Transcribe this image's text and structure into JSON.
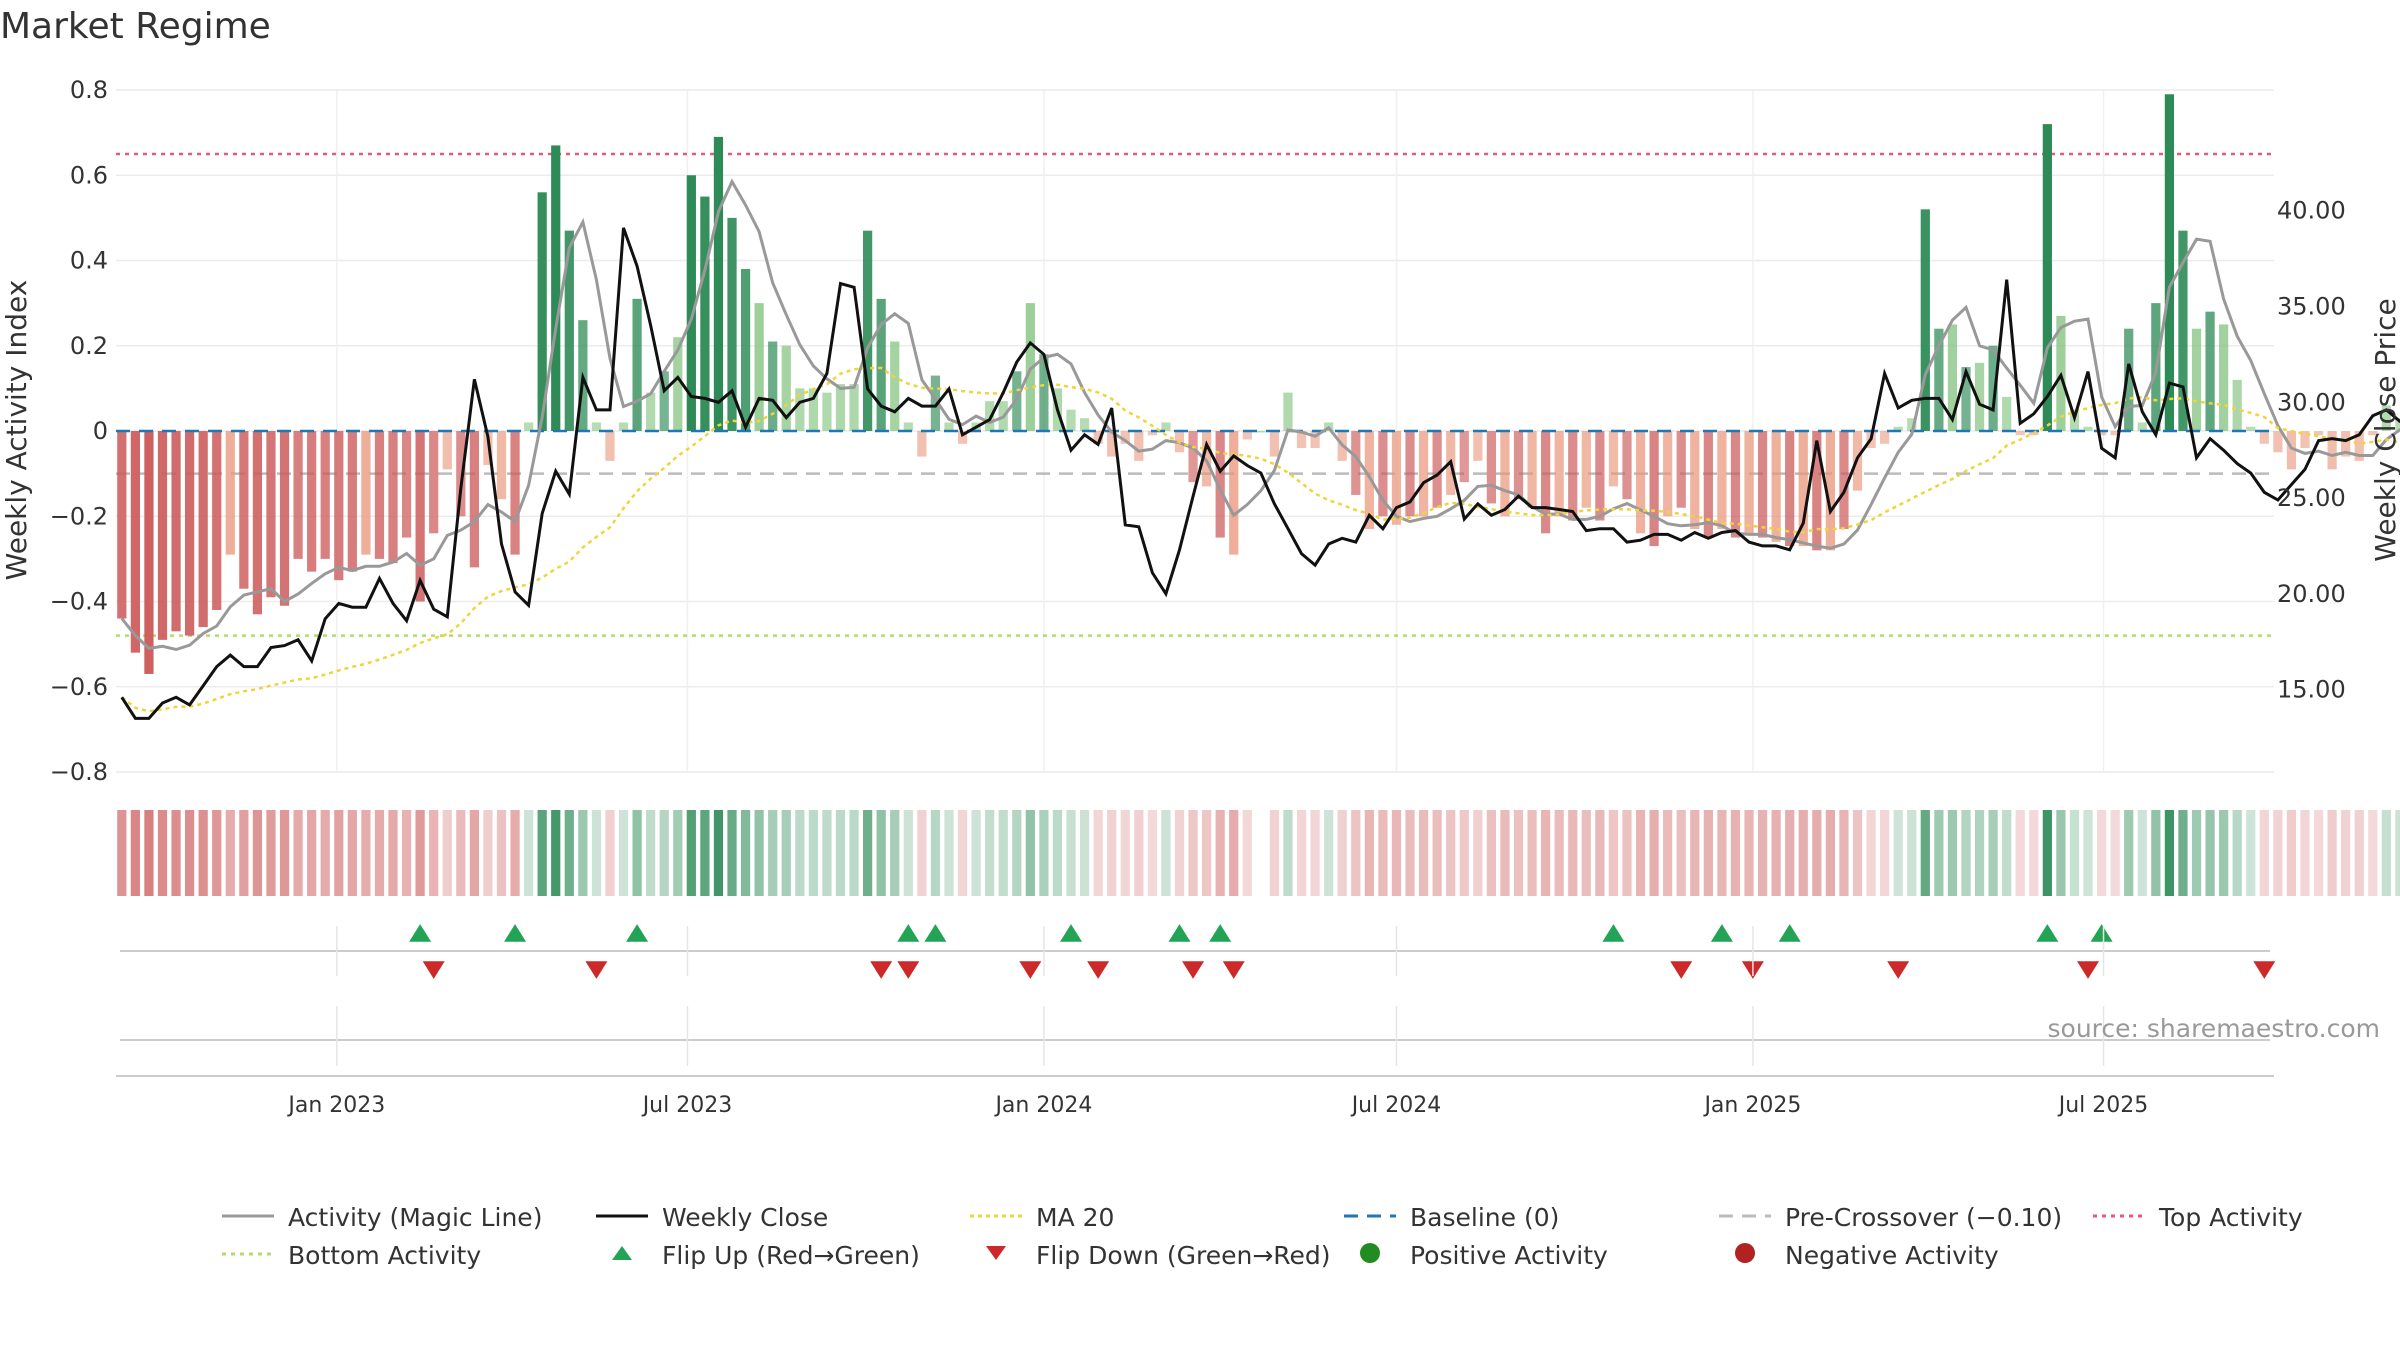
{
  "chart_data": {
    "type": "bar",
    "title": "Market Regime",
    "ylabel": "Weekly Activity Index",
    "y2label": "Weekly Close Price",
    "ylim": [
      -0.8,
      0.8
    ],
    "yticks": [
      -0.8,
      -0.6,
      -0.4,
      -0.2,
      0,
      0.2,
      0.4,
      0.6,
      0.8
    ],
    "yticklabels": [
      "−0.8",
      "−0.6",
      "−0.4",
      "−0.2",
      "0",
      "0.2",
      "0.4",
      "0.6",
      "0.8"
    ],
    "y2lim": [
      10.7,
      46.3
    ],
    "y2ticks": [
      15,
      20,
      25,
      30,
      35,
      40
    ],
    "y2ticklabels": [
      "15.00",
      "20.00",
      "25.00",
      "30.00",
      "35.00",
      "40.00"
    ],
    "x_start": "2022-09-12",
    "x_step_days": 7,
    "xlim": [
      "2022-09-09",
      "2025-09-27"
    ],
    "xticks": [
      "2023-01-01",
      "2023-07-01",
      "2024-01-01",
      "2024-07-01",
      "2025-01-01",
      "2025-07-01"
    ],
    "xticklabels": [
      "Jan 2023",
      "Jul 2023",
      "Jan 2024",
      "Jul 2024",
      "Jan 2025",
      "Jul 2025"
    ],
    "grid": true,
    "legend_position": "bottom",
    "reference_lines": {
      "top_activity": 0.65,
      "bottom_activity": -0.48,
      "pre_crossover": -0.1,
      "baseline": 0
    },
    "activity": [
      -0.44,
      -0.52,
      -0.57,
      -0.49,
      -0.47,
      -0.48,
      -0.46,
      -0.42,
      -0.29,
      -0.37,
      -0.43,
      -0.39,
      -0.41,
      -0.3,
      -0.33,
      -0.3,
      -0.35,
      -0.33,
      -0.29,
      -0.3,
      -0.31,
      -0.25,
      -0.4,
      -0.24,
      -0.09,
      -0.2,
      -0.32,
      -0.08,
      -0.16,
      -0.29,
      0.02,
      0.56,
      0.67,
      0.47,
      0.26,
      0.02,
      -0.07,
      0.02,
      0.31,
      0.09,
      0.14,
      0.22,
      0.6,
      0.55,
      0.69,
      0.5,
      0.38,
      0.3,
      0.21,
      0.2,
      0.1,
      0.1,
      0.09,
      0.11,
      0.11,
      0.47,
      0.31,
      0.21,
      0.02,
      -0.06,
      0.13,
      0.02,
      -0.03,
      0.02,
      0.07,
      0.07,
      0.14,
      0.3,
      0.18,
      0.1,
      0.05,
      0.03,
      -0.03,
      -0.06,
      -0.03,
      -0.07,
      -0.01,
      0.02,
      -0.05,
      -0.12,
      -0.13,
      -0.25,
      -0.29,
      -0.02,
      0.0,
      -0.06,
      0.09,
      -0.04,
      -0.04,
      0.02,
      -0.07,
      -0.15,
      -0.23,
      -0.2,
      -0.22,
      -0.2,
      -0.2,
      -0.18,
      -0.15,
      -0.12,
      -0.07,
      -0.17,
      -0.2,
      -0.16,
      -0.18,
      -0.24,
      -0.2,
      -0.21,
      -0.18,
      -0.21,
      -0.13,
      -0.16,
      -0.24,
      -0.27,
      -0.2,
      -0.18,
      -0.23,
      -0.25,
      -0.23,
      -0.25,
      -0.24,
      -0.25,
      -0.26,
      -0.27,
      -0.27,
      -0.28,
      -0.28,
      -0.23,
      -0.14,
      -0.04,
      -0.03,
      0.01,
      0.03,
      0.52,
      0.24,
      0.25,
      0.15,
      0.16,
      0.2,
      0.08,
      -0.01,
      -0.01,
      0.72,
      0.27,
      0.05,
      0.01,
      -0.01,
      -0.01,
      0.24,
      0.02,
      0.3,
      0.79,
      0.47,
      0.24,
      0.28,
      0.25,
      0.12,
      0.01,
      -0.03,
      -0.05,
      -0.09,
      -0.04,
      -0.01,
      -0.09,
      -0.06,
      -0.07,
      -0.01,
      0.06,
      0.03,
      0.04,
      0.04,
      0.1,
      0.01,
      0.21,
      0.2,
      0.21,
      0.16,
      0.23,
      0.18,
      0.26,
      0.17,
      0.21,
      0.1,
      0.41,
      0.11,
      -0.01,
      -0.01
    ],
    "weekly_close": [
      14.6,
      13.5,
      13.5,
      14.3,
      14.6,
      14.2,
      15.2,
      16.2,
      16.8,
      16.2,
      16.2,
      17.2,
      17.3,
      17.6,
      16.5,
      18.7,
      19.5,
      19.3,
      19.3,
      20.8,
      19.5,
      18.6,
      20.7,
      19.2,
      18.8,
      25.5,
      31.2,
      28.2,
      22.6,
      20.1,
      19.4,
      24.2,
      26.4,
      25.2,
      31.3,
      29.6,
      29.6,
      39.1,
      37.1,
      34.0,
      30.6,
      31.3,
      30.3,
      30.2,
      30.0,
      30.6,
      28.7,
      30.2,
      30.1,
      29.2,
      30.0,
      30.2,
      31.5,
      36.2,
      36.0,
      30.7,
      29.8,
      29.5,
      30.2,
      29.8,
      29.8,
      30.7,
      28.3,
      28.7,
      29.1,
      30.5,
      32.1,
      33.1,
      32.5,
      29.6,
      27.5,
      28.3,
      27.8,
      29.7,
      23.6,
      23.5,
      21.1,
      20.0,
      22.3,
      25.1,
      27.8,
      26.4,
      27.2,
      26.7,
      26.3,
      24.7,
      23.4,
      22.1,
      21.5,
      22.6,
      22.9,
      22.7,
      24.1,
      23.4,
      24.5,
      24.8,
      25.8,
      26.2,
      26.9,
      23.9,
      24.7,
      24.1,
      24.4,
      25.1,
      24.5,
      24.5,
      24.4,
      24.3,
      23.3,
      23.4,
      23.4,
      22.7,
      22.8,
      23.1,
      23.1,
      22.8,
      23.2,
      22.9,
      23.2,
      23.3,
      22.7,
      22.5,
      22.5,
      22.3,
      23.7,
      28.0,
      24.3,
      25.3,
      27.1,
      28.1,
      31.5,
      29.7,
      30.1,
      30.2,
      30.2,
      29.1,
      31.6,
      29.9,
      29.6,
      36.4,
      28.9,
      29.4,
      30.3,
      31.4,
      29.2,
      31.6,
      27.6,
      27.1,
      32.0,
      29.5,
      28.3,
      31.0,
      30.8,
      27.1,
      28.1,
      27.5,
      26.8,
      26.3,
      25.3,
      24.9,
      25.7,
      26.5,
      28.0,
      28.1,
      28.0,
      28.3,
      29.3,
      29.6,
      29.0,
      28.8,
      28.6,
      29.6,
      32.2,
      31.5,
      32.0,
      32.2,
      33.1,
      32.7,
      33.1,
      33.0,
      33.7,
      32.6,
      33.1,
      33.2,
      32.1,
      31.3
    ]
  },
  "flip_up_dates": [
    "2023-02-13",
    "2023-04-03",
    "2023-06-05",
    "2023-10-23",
    "2023-11-06",
    "2024-01-15",
    "2024-03-11",
    "2024-04-01",
    "2024-10-21",
    "2024-12-16",
    "2025-01-20",
    "2025-06-02",
    "2025-06-30"
  ],
  "flip_down_dates": [
    "2023-02-20",
    "2023-05-15",
    "2023-10-09",
    "2023-10-23",
    "2023-12-25",
    "2024-01-29",
    "2024-03-18",
    "2024-04-08",
    "2024-11-25",
    "2025-01-01",
    "2025-03-17",
    "2025-06-23",
    "2025-09-22"
  ],
  "colors": {
    "pos_dark": "#2e8b57",
    "pos_light": "#7fc17b",
    "neg_dark": "#cd5c5c",
    "neg_light": "#e9967a",
    "activity_line": "#999999",
    "close_line": "#111111",
    "ma_line": "#f0d43a",
    "baseline": "#1f77b4",
    "top_line": "#e05c7a",
    "bottom_line": "#b5d96b",
    "pre_crossover": "#bbbbbb",
    "flip_up": "#22a355",
    "flip_down": "#cc2a2a",
    "positive_marker": "#228b22",
    "negative_marker": "#b22222"
  },
  "source_note": "source: sharemaestro.com",
  "legend": [
    {
      "label": "Activity (Magic Line)",
      "icon": "line-solid-gray"
    },
    {
      "label": "Weekly Close",
      "icon": "line-solid-black"
    },
    {
      "label": "MA 20",
      "icon": "line-dotted-yellow"
    },
    {
      "label": "Baseline (0)",
      "icon": "line-dashed-blue"
    },
    {
      "label": "Pre-Crossover (−0.10)",
      "icon": "line-dashed-gray"
    },
    {
      "label": "Top Activity",
      "icon": "line-dotted-red"
    },
    {
      "label": "Bottom Activity",
      "icon": "line-dotted-green"
    },
    {
      "label": "Flip Up (Red→Green)",
      "icon": "triangle-up-icon"
    },
    {
      "label": "Flip Down (Green→Red)",
      "icon": "triangle-down-icon"
    },
    {
      "label": "Positive Activity",
      "icon": "green-dot-icon"
    },
    {
      "label": "Negative Activity",
      "icon": "red-dot-icon"
    }
  ]
}
